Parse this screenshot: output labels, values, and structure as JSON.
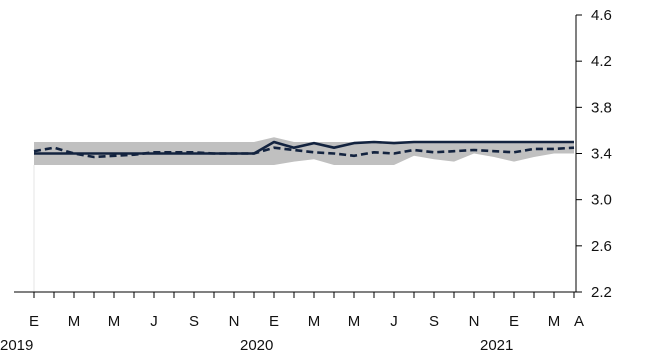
{
  "chart_data": {
    "type": "line",
    "x": [
      "2019-01",
      "2019-02",
      "2019-03",
      "2019-04",
      "2019-05",
      "2019-06",
      "2019-07",
      "2019-08",
      "2019-09",
      "2019-10",
      "2019-11",
      "2019-12",
      "2020-01",
      "2020-02",
      "2020-03",
      "2020-04",
      "2020-05",
      "2020-06",
      "2020-07",
      "2020-08",
      "2020-09",
      "2020-10",
      "2020-11",
      "2020-12",
      "2021-01",
      "2021-02",
      "2021-03",
      "2021-04"
    ],
    "x_tick_labels": [
      "E",
      "M",
      "M",
      "J",
      "S",
      "N",
      "E",
      "M",
      "M",
      "J",
      "S",
      "N",
      "E",
      "M",
      "A"
    ],
    "x_tick_months": [
      0,
      2,
      4,
      6,
      8,
      10,
      12,
      14,
      16,
      18,
      20,
      22,
      24,
      26,
      27
    ],
    "year_labels": [
      {
        "label": "2019",
        "month": 0
      },
      {
        "label": "2020",
        "month": 12
      },
      {
        "label": "2021",
        "month": 24
      }
    ],
    "ylim": [
      2.2,
      4.6
    ],
    "y_ticks": [
      "2.2",
      "2.6",
      "3.0",
      "3.4",
      "3.8",
      "4.2",
      "4.6"
    ],
    "y_axis_side": "right",
    "series": [
      {
        "style": "band",
        "color": "#c0c0c0",
        "upper": [
          3.5,
          3.5,
          3.5,
          3.5,
          3.5,
          3.5,
          3.5,
          3.5,
          3.5,
          3.5,
          3.5,
          3.5,
          3.54,
          3.5,
          3.5,
          3.5,
          3.5,
          3.5,
          3.5,
          3.5,
          3.5,
          3.5,
          3.5,
          3.5,
          3.5,
          3.5,
          3.5,
          3.5
        ],
        "lower": [
          3.3,
          3.3,
          3.3,
          3.3,
          3.3,
          3.3,
          3.3,
          3.3,
          3.3,
          3.3,
          3.3,
          3.3,
          3.3,
          3.33,
          3.35,
          3.3,
          3.3,
          3.3,
          3.3,
          3.38,
          3.35,
          3.33,
          3.4,
          3.37,
          3.33,
          3.37,
          3.4,
          3.4
        ]
      },
      {
        "style": "solid",
        "color": "#13233f",
        "values": [
          3.4,
          3.4,
          3.4,
          3.4,
          3.4,
          3.4,
          3.4,
          3.4,
          3.4,
          3.4,
          3.4,
          3.4,
          3.5,
          3.45,
          3.49,
          3.45,
          3.49,
          3.5,
          3.49,
          3.5,
          3.5,
          3.5,
          3.5,
          3.5,
          3.5,
          3.5,
          3.5,
          3.5
        ]
      },
      {
        "style": "dashed",
        "color": "#13233f",
        "values": [
          3.42,
          3.45,
          3.4,
          3.37,
          3.38,
          3.39,
          3.41,
          3.41,
          3.41,
          3.4,
          3.4,
          3.4,
          3.45,
          3.43,
          3.41,
          3.4,
          3.38,
          3.41,
          3.4,
          3.43,
          3.41,
          3.42,
          3.43,
          3.42,
          3.41,
          3.44,
          3.44,
          3.45
        ]
      }
    ]
  }
}
